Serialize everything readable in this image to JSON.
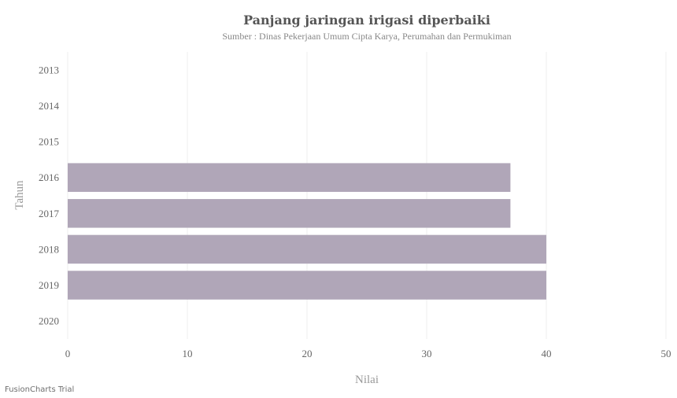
{
  "watermark": "FusionCharts Trial",
  "chart_data": {
    "type": "bar",
    "orientation": "horizontal",
    "title": "Panjang jaringan irigasi diperbaiki",
    "subtitle": "Sumber : Dinas Pekerjaan Umum Cipta Karya, Perumahan dan Permukiman",
    "xlabel": "Nilai",
    "ylabel": "Tahun",
    "categories": [
      "2013",
      "2014",
      "2015",
      "2016",
      "2017",
      "2018",
      "2019",
      "2020"
    ],
    "values": [
      null,
      null,
      null,
      37,
      37,
      40,
      40,
      null
    ],
    "xlim": [
      0,
      50
    ],
    "xticks": [
      0,
      10,
      20,
      30,
      40,
      50
    ],
    "grid": true,
    "bar_color": "#b0a6b8"
  }
}
